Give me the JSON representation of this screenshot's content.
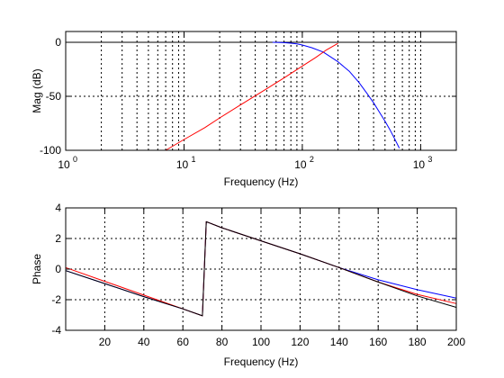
{
  "figure": {
    "background": "#ffffff"
  },
  "chart_data": [
    {
      "type": "line",
      "xscale": "log",
      "xlim": [
        1,
        2000
      ],
      "ylim": [
        -100,
        10
      ],
      "xlabel": "Frequency (Hz)",
      "ylabel": "Mag (dB)",
      "grid": true,
      "xticks": [
        {
          "value": 1,
          "base": "10",
          "exp": "0"
        },
        {
          "value": 10,
          "base": "10",
          "exp": "1"
        },
        {
          "value": 100,
          "base": "10",
          "exp": "2"
        },
        {
          "value": 1000,
          "base": "10",
          "exp": "3"
        }
      ],
      "yticks": [
        {
          "value": 0,
          "label": "0"
        },
        {
          "value": -50,
          "label": "-50"
        },
        {
          "value": -100,
          "label": "-100"
        }
      ],
      "reference_lines": [
        {
          "y": 0,
          "color": "#000000"
        }
      ],
      "series": [
        {
          "color": "#0000ff",
          "x": [
            56,
            70,
            80,
            90,
            100,
            120,
            150,
            200,
            250,
            300,
            350,
            400,
            450,
            500,
            550,
            600,
            660
          ],
          "y": [
            0,
            -0.3,
            -0.8,
            -1.5,
            -2.5,
            -5,
            -9,
            -18,
            -27,
            -37,
            -47,
            -56,
            -65,
            -73,
            -81,
            -89,
            -98
          ]
        },
        {
          "color": "#ff0000",
          "x": [
            7,
            10,
            15,
            20,
            30,
            50,
            70,
            100,
            130,
            160,
            200
          ],
          "y": [
            -100,
            -90,
            -79,
            -70,
            -58,
            -43,
            -33,
            -22,
            -14,
            -7,
            -1
          ]
        }
      ]
    },
    {
      "type": "line",
      "xlim": [
        0,
        200
      ],
      "ylim": [
        -4,
        4
      ],
      "xlabel": "Frequency (Hz)",
      "ylabel": "Phase",
      "grid": true,
      "xticks": [
        {
          "value": 20,
          "label": "20"
        },
        {
          "value": 40,
          "label": "40"
        },
        {
          "value": 60,
          "label": "60"
        },
        {
          "value": 80,
          "label": "80"
        },
        {
          "value": 100,
          "label": "100"
        },
        {
          "value": 120,
          "label": "120"
        },
        {
          "value": 140,
          "label": "140"
        },
        {
          "value": 160,
          "label": "160"
        },
        {
          "value": 180,
          "label": "180"
        },
        {
          "value": 200,
          "label": "200"
        }
      ],
      "yticks": [
        {
          "value": 4,
          "label": "4"
        },
        {
          "value": 2,
          "label": "2"
        },
        {
          "value": 0,
          "label": "0"
        },
        {
          "value": -2,
          "label": "-2"
        },
        {
          "value": -4,
          "label": "-4"
        }
      ],
      "series": [
        {
          "color": "#0000ff",
          "x": [
            0,
            20,
            40,
            60,
            70,
            72,
            80,
            100,
            120,
            140,
            160,
            180,
            200
          ],
          "y": [
            -0.1,
            -0.95,
            -1.8,
            -2.6,
            -3.05,
            3.1,
            2.7,
            1.85,
            1.0,
            0.1,
            -0.7,
            -1.35,
            -1.9
          ]
        },
        {
          "color": "#ff0000",
          "x": [
            0,
            20,
            40,
            60,
            70,
            72,
            80,
            100,
            120,
            140,
            160,
            180,
            200
          ],
          "y": [
            0.1,
            -0.8,
            -1.7,
            -2.6,
            -3.05,
            3.1,
            2.7,
            1.85,
            1.0,
            0.1,
            -0.85,
            -1.65,
            -2.25
          ]
        },
        {
          "color": "#000000",
          "x": [
            0,
            20,
            40,
            60,
            70,
            72,
            80,
            100,
            120,
            140,
            160,
            180,
            200
          ],
          "y": [
            -0.1,
            -0.95,
            -1.8,
            -2.6,
            -3.05,
            3.1,
            2.7,
            1.85,
            1.0,
            0.1,
            -0.85,
            -1.75,
            -2.5
          ]
        }
      ]
    }
  ]
}
